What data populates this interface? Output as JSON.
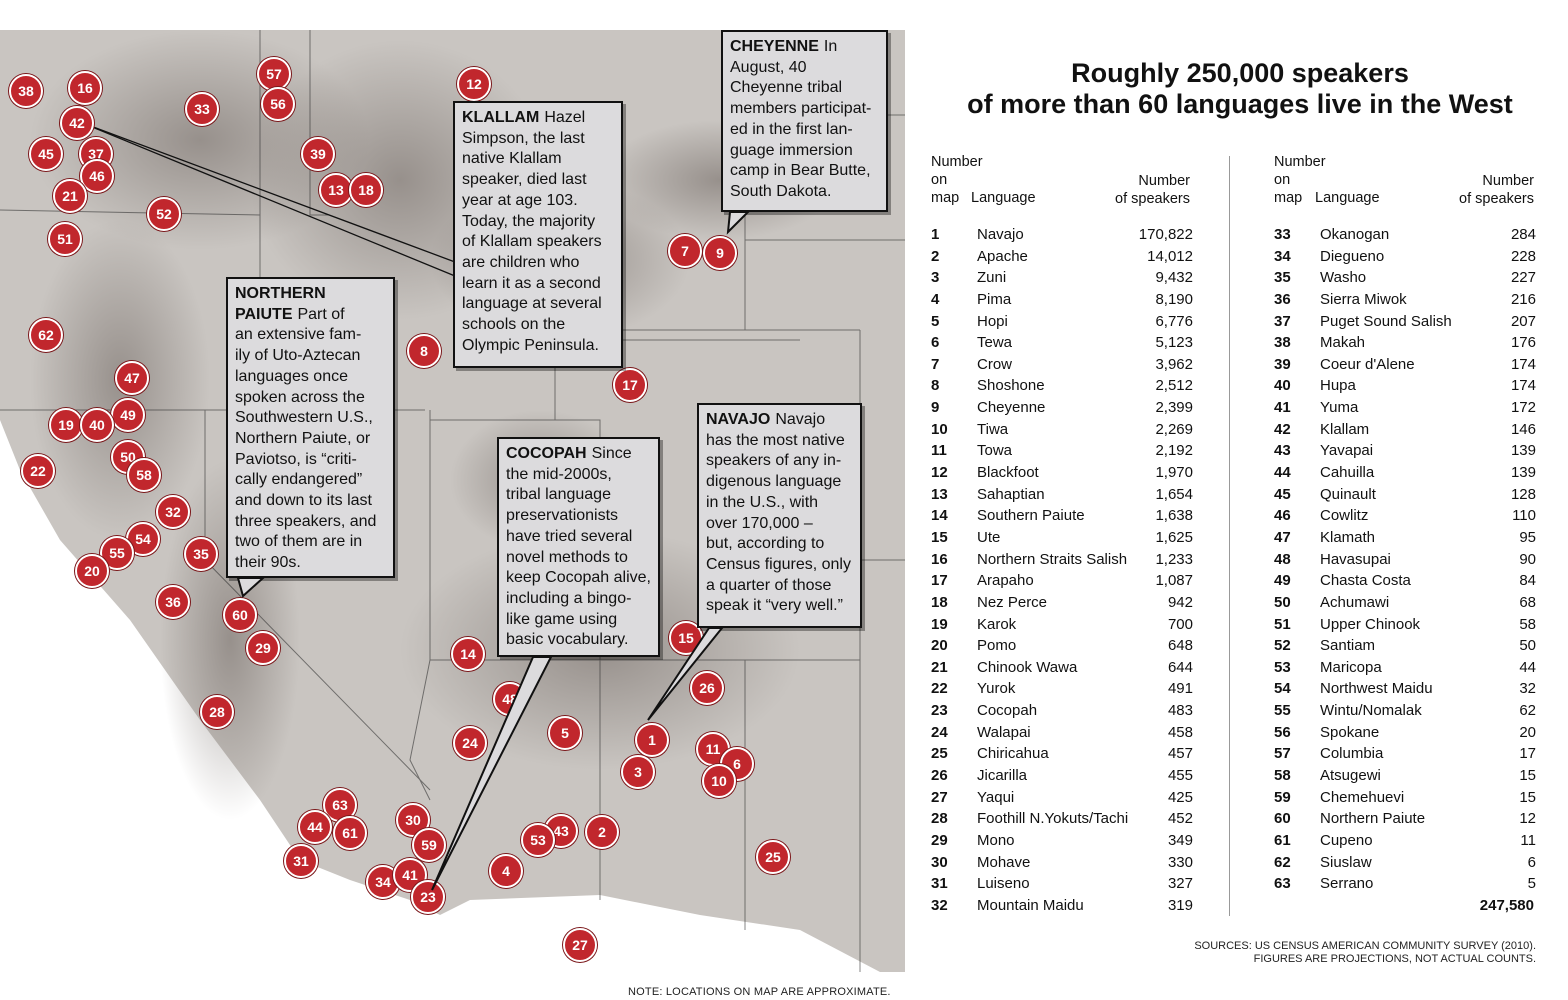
{
  "headline": [
    "Roughly 250,000 speakers",
    "of more than 60 languages live in the West"
  ],
  "table_headers": {
    "num_on_map": [
      "Number",
      "on",
      "map"
    ],
    "language": "Language",
    "num_speakers": [
      "Number",
      "of speakers"
    ]
  },
  "languages_left": [
    {
      "n": "1",
      "language": "Navajo",
      "speakers": "170,822"
    },
    {
      "n": "2",
      "language": "Apache",
      "speakers": "14,012"
    },
    {
      "n": "3",
      "language": "Zuni",
      "speakers": "9,432"
    },
    {
      "n": "4",
      "language": "Pima",
      "speakers": "8,190"
    },
    {
      "n": "5",
      "language": "Hopi",
      "speakers": "6,776"
    },
    {
      "n": "6",
      "language": "Tewa",
      "speakers": "5,123"
    },
    {
      "n": "7",
      "language": "Crow",
      "speakers": "3,962"
    },
    {
      "n": "8",
      "language": "Shoshone",
      "speakers": "2,512"
    },
    {
      "n": "9",
      "language": "Cheyenne",
      "speakers": "2,399"
    },
    {
      "n": "10",
      "language": "Tiwa",
      "speakers": "2,269"
    },
    {
      "n": "11",
      "language": "Towa",
      "speakers": "2,192"
    },
    {
      "n": "12",
      "language": "Blackfoot",
      "speakers": "1,970"
    },
    {
      "n": "13",
      "language": "Sahaptian",
      "speakers": "1,654"
    },
    {
      "n": "14",
      "language": "Southern Paiute",
      "speakers": "1,638"
    },
    {
      "n": "15",
      "language": "Ute",
      "speakers": "1,625"
    },
    {
      "n": "16",
      "language": "Northern Straits Salish",
      "speakers": "1,233"
    },
    {
      "n": "17",
      "language": "Arapaho",
      "speakers": "1,087"
    },
    {
      "n": "18",
      "language": "Nez Perce",
      "speakers": "942"
    },
    {
      "n": "19",
      "language": "Karok",
      "speakers": "700"
    },
    {
      "n": "20",
      "language": "Pomo",
      "speakers": "648"
    },
    {
      "n": "21",
      "language": "Chinook Wawa",
      "speakers": "644"
    },
    {
      "n": "22",
      "language": "Yurok",
      "speakers": "491"
    },
    {
      "n": "23",
      "language": "Cocopah",
      "speakers": "483"
    },
    {
      "n": "24",
      "language": "Walapai",
      "speakers": "458"
    },
    {
      "n": "25",
      "language": "Chiricahua",
      "speakers": "457"
    },
    {
      "n": "26",
      "language": "Jicarilla",
      "speakers": "455"
    },
    {
      "n": "27",
      "language": "Yaqui",
      "speakers": "425"
    },
    {
      "n": "28",
      "language": "Foothill N.Yokuts/Tachi",
      "speakers": "452"
    },
    {
      "n": "29",
      "language": "Mono",
      "speakers": "349"
    },
    {
      "n": "30",
      "language": "Mohave",
      "speakers": "330"
    },
    {
      "n": "31",
      "language": "Luiseno",
      "speakers": "327"
    },
    {
      "n": "32",
      "language": "Mountain Maidu",
      "speakers": "319"
    }
  ],
  "languages_right": [
    {
      "n": "33",
      "language": "Okanogan",
      "speakers": "284"
    },
    {
      "n": "34",
      "language": "Diegueno",
      "speakers": "228"
    },
    {
      "n": "35",
      "language": "Washo",
      "speakers": "227"
    },
    {
      "n": "36",
      "language": "Sierra Miwok",
      "speakers": "216"
    },
    {
      "n": "37",
      "language": "Puget Sound Salish",
      "speakers": "207"
    },
    {
      "n": "38",
      "language": "Makah",
      "speakers": "176"
    },
    {
      "n": "39",
      "language": "Coeur d'Alene",
      "speakers": "174"
    },
    {
      "n": "40",
      "language": "Hupa",
      "speakers": "174"
    },
    {
      "n": "41",
      "language": "Yuma",
      "speakers": "172"
    },
    {
      "n": "42",
      "language": "Klallam",
      "speakers": "146"
    },
    {
      "n": "43",
      "language": "Yavapai",
      "speakers": "139"
    },
    {
      "n": "44",
      "language": "Cahuilla",
      "speakers": "139"
    },
    {
      "n": "45",
      "language": "Quinault",
      "speakers": "128"
    },
    {
      "n": "46",
      "language": "Cowlitz",
      "speakers": "110"
    },
    {
      "n": "47",
      "language": "Klamath",
      "speakers": "95"
    },
    {
      "n": "48",
      "language": "Havasupai",
      "speakers": "90"
    },
    {
      "n": "49",
      "language": "Chasta Costa",
      "speakers": "84"
    },
    {
      "n": "50",
      "language": "Achumawi",
      "speakers": "68"
    },
    {
      "n": "51",
      "language": "Upper Chinook",
      "speakers": "58"
    },
    {
      "n": "52",
      "language": "Santiam",
      "speakers": "50"
    },
    {
      "n": "53",
      "language": "Maricopa",
      "speakers": "44"
    },
    {
      "n": "54",
      "language": "Northwest Maidu",
      "speakers": "32"
    },
    {
      "n": "55",
      "language": "Wintu/Nomalak",
      "speakers": "62"
    },
    {
      "n": "56",
      "language": "Spokane",
      "speakers": "20"
    },
    {
      "n": "57",
      "language": "Columbia",
      "speakers": "17"
    },
    {
      "n": "58",
      "language": "Atsugewi",
      "speakers": "15"
    },
    {
      "n": "59",
      "language": "Chemehuevi",
      "speakers": "15"
    },
    {
      "n": "60",
      "language": "Northern Paiute",
      "speakers": "12"
    },
    {
      "n": "61",
      "language": "Cupeno",
      "speakers": "11"
    },
    {
      "n": "62",
      "language": "Siuslaw",
      "speakers": "6"
    },
    {
      "n": "63",
      "language": "Serrano",
      "speakers": "5"
    }
  ],
  "total": "247,580",
  "sources": [
    "SOURCES:  US CENSUS AMERICAN COMMUNITY SURVEY (2010).",
    "FIGURES ARE PROJECTIONS, NOT ACTUAL COUNTS."
  ],
  "map_note": "NOTE: LOCATIONS ON MAP ARE APPROXIMATE.",
  "map_markers": [
    "38",
    "16",
    "42",
    "45",
    "37",
    "46",
    "21",
    "33",
    "57",
    "56",
    "12",
    "39",
    "13",
    "18",
    "52",
    "51",
    "7",
    "9",
    "62",
    "8",
    "17",
    "47",
    "49",
    "19",
    "40",
    "50",
    "58",
    "22",
    "32",
    "54",
    "55",
    "20",
    "35",
    "36",
    "60",
    "29",
    "15",
    "14",
    "26",
    "48",
    "1",
    "5",
    "24",
    "11",
    "6",
    "10",
    "3",
    "28",
    "63",
    "44",
    "61",
    "30",
    "59",
    "43",
    "53",
    "2",
    "31",
    "4",
    "34",
    "41",
    "23",
    "25",
    "27"
  ],
  "callouts": [
    {
      "title": "CHEYENNE",
      "lines": [
        "In August, 40",
        "Cheyenne tribal",
        "members participat-",
        "ed in the first lan-",
        "guage immersion",
        "camp in Bear Butte,",
        "South Dakota."
      ]
    },
    {
      "title": "KLALLAM",
      "lines": [
        "Hazel",
        "Simpson, the last",
        "native Klallam",
        "speaker, died last",
        "year at age 103.",
        "Today, the majority",
        "of Klallam speakers",
        "are children who",
        "learn it as a second",
        "language at several",
        "schools on the",
        "Olympic Peninsula."
      ]
    },
    {
      "title": "NORTHERN PAIUTE",
      "lines": [
        "Part of",
        "an extensive fam-",
        "ily of Uto-Aztecan",
        "languages once",
        "spoken across the",
        "Southwestern U.S.,",
        "Northern Paiute, or",
        "Paviotso, is “criti-",
        "cally endangered”",
        "and down to its last",
        "three speakers, and",
        "two of them are in",
        "their 90s."
      ]
    },
    {
      "title": "COCOPAH",
      "lines": [
        "Since",
        "the mid-2000s,",
        "tribal language",
        "preservationists",
        "have tried several",
        "novel methods to",
        "keep Cocopah alive,",
        "including a bingo-",
        "like game using",
        "basic vocabulary."
      ]
    },
    {
      "title": "NAVAJO",
      "lines": [
        "Navajo",
        "has the most native",
        "speakers of any in-",
        "digenous language",
        "in the U.S., with",
        "over 170,000 –",
        "but, according to",
        "Census figures, only",
        "a quarter of those",
        "speak it “very well.”"
      ]
    }
  ],
  "colors": {
    "marker": "#c1272d",
    "callout_bg": "#dcdbdd",
    "map_land": "#c9c5c1"
  }
}
